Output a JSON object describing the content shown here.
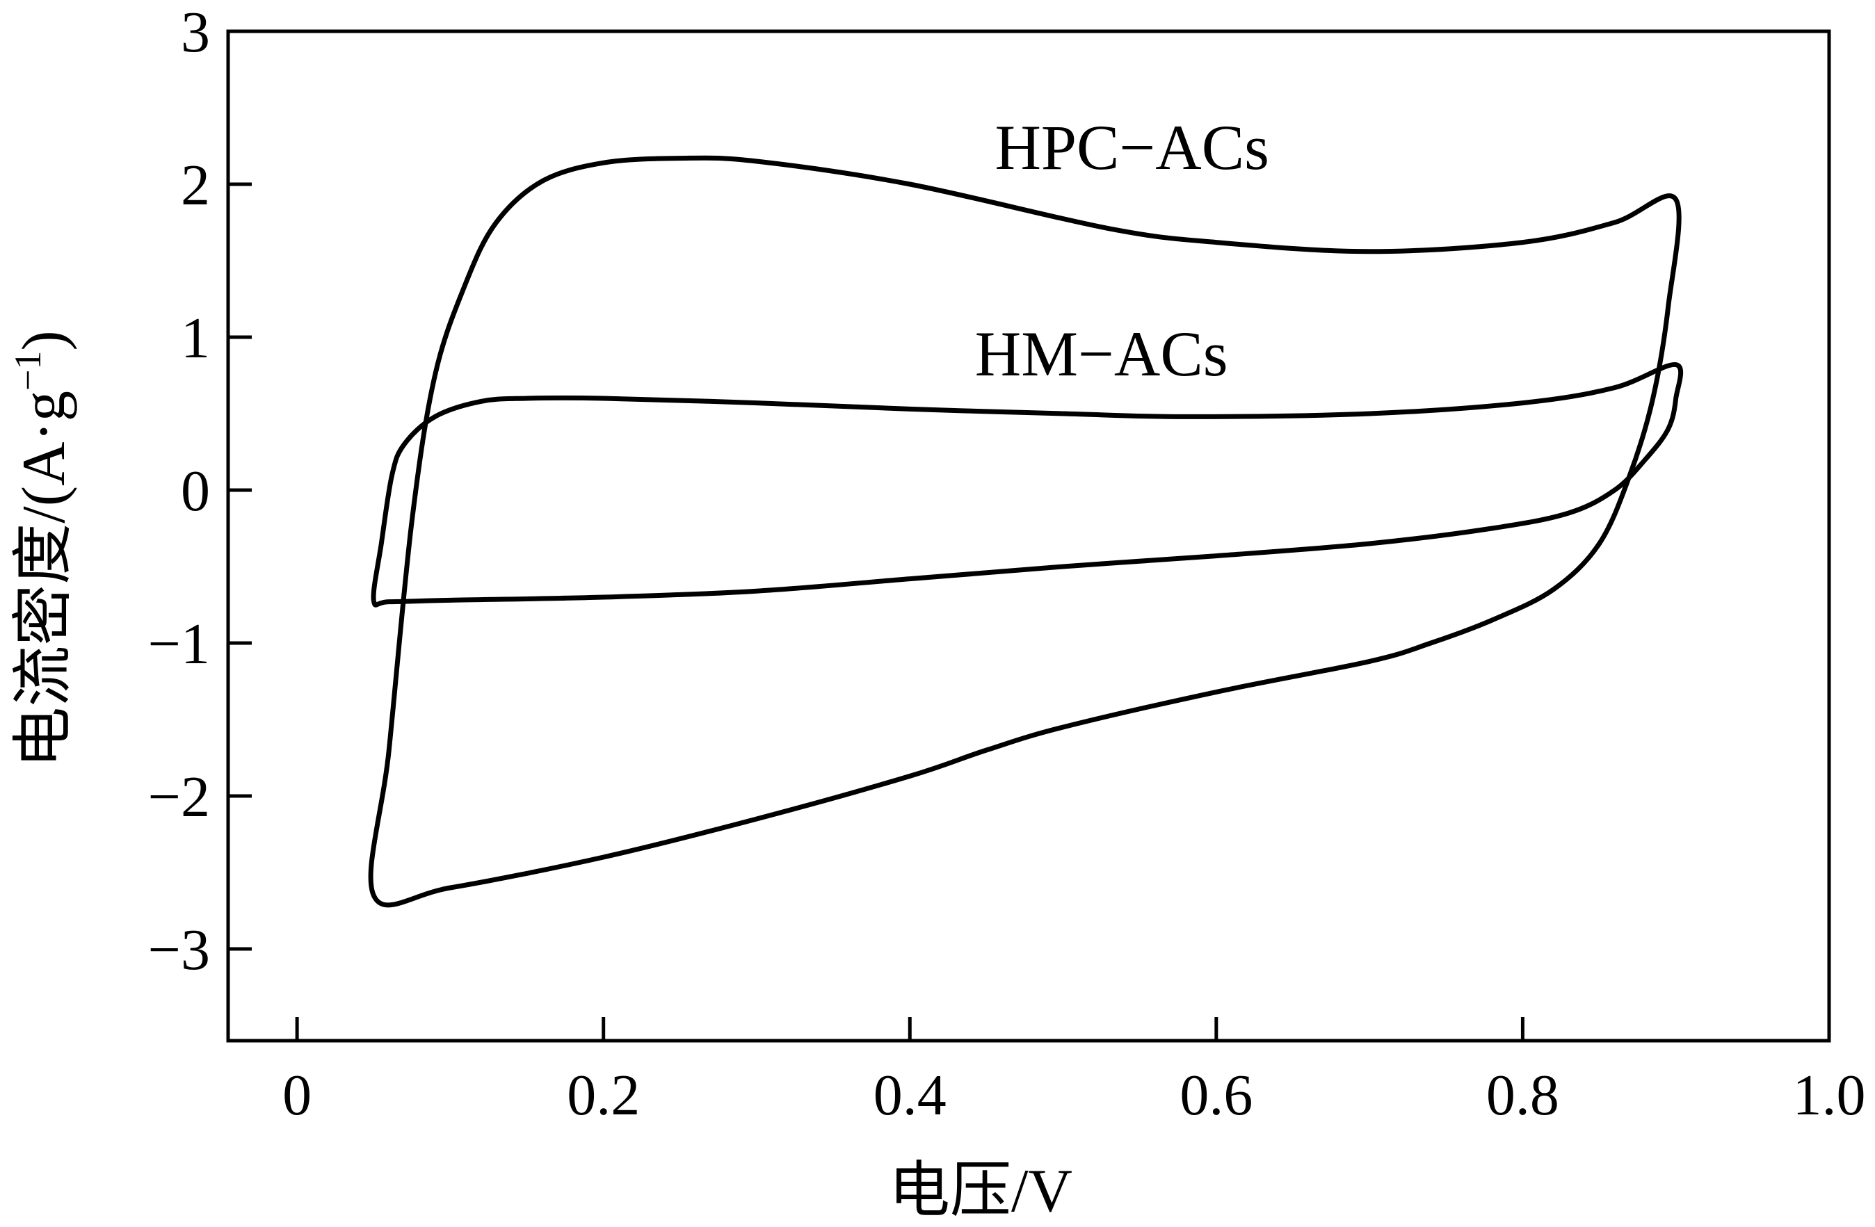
{
  "chart_data": {
    "type": "line",
    "xlabel": "电压/V",
    "ylabel": "电流密度/(A·g",
    "ylabel_sup": "−1",
    "ylabel_close": ")",
    "xlim": [
      -0.045,
      1.0
    ],
    "ylim": [
      -3.6,
      3.0
    ],
    "x_ticks": [
      0,
      0.2,
      0.4,
      0.6,
      0.8,
      1.0
    ],
    "x_tick_labels": [
      "0",
      "0.2",
      "0.4",
      "0.6",
      "0.8",
      "1.0"
    ],
    "y_ticks": [
      -3,
      -2,
      -1,
      0,
      1,
      2,
      3
    ],
    "y_tick_labels": [
      "−3",
      "−2",
      "−1",
      "0",
      "1",
      "2",
      "3"
    ],
    "grid": false,
    "legend": "none",
    "annotations": [
      {
        "text": "HPC−ACs",
        "x": 0.545,
        "y": 2.1
      },
      {
        "text": "HM−ACs",
        "x": 0.525,
        "y": 0.75
      }
    ],
    "series": [
      {
        "name": "HPC−ACs",
        "x": [
          0.05,
          0.06,
          0.075,
          0.09,
          0.11,
          0.13,
          0.16,
          0.2,
          0.25,
          0.3,
          0.4,
          0.53,
          0.6,
          0.7,
          0.8,
          0.86,
          0.9,
          0.895,
          0.885,
          0.87,
          0.85,
          0.82,
          0.78,
          0.74,
          0.7,
          0.6,
          0.5,
          0.45,
          0.4,
          0.3,
          0.2,
          0.1,
          0.05
        ],
        "y": [
          -2.65,
          -1.7,
          -0.2,
          0.75,
          1.35,
          1.75,
          2.02,
          2.14,
          2.17,
          2.15,
          2.0,
          1.71,
          1.62,
          1.56,
          1.62,
          1.75,
          1.9,
          1.2,
          0.6,
          0.1,
          -0.35,
          -0.65,
          -0.85,
          -1.0,
          -1.12,
          -1.32,
          -1.55,
          -1.7,
          -1.87,
          -2.15,
          -2.4,
          -2.6,
          -2.65
        ]
      },
      {
        "name": "HM−ACs",
        "x": [
          0.05,
          0.055,
          0.062,
          0.07,
          0.09,
          0.12,
          0.15,
          0.2,
          0.3,
          0.4,
          0.5,
          0.58,
          0.7,
          0.8,
          0.86,
          0.9,
          0.9,
          0.895,
          0.88,
          0.86,
          0.83,
          0.78,
          0.7,
          0.6,
          0.5,
          0.4,
          0.3,
          0.2,
          0.1,
          0.06,
          0.05
        ],
        "y": [
          -0.72,
          -0.35,
          0.1,
          0.3,
          0.48,
          0.58,
          0.6,
          0.6,
          0.57,
          0.53,
          0.5,
          0.48,
          0.5,
          0.57,
          0.67,
          0.82,
          0.6,
          0.4,
          0.2,
          0.0,
          -0.15,
          -0.25,
          -0.35,
          -0.43,
          -0.5,
          -0.58,
          -0.66,
          -0.7,
          -0.72,
          -0.73,
          -0.72
        ]
      }
    ]
  }
}
